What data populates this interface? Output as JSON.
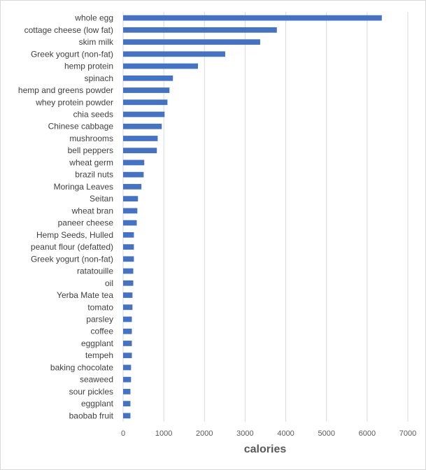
{
  "chart_data": {
    "type": "bar",
    "orientation": "horizontal",
    "title": "",
    "xlabel": "calories",
    "ylabel": "",
    "xlim": [
      0,
      7000
    ],
    "xticks": [
      0,
      1000,
      2000,
      3000,
      4000,
      5000,
      6000,
      7000
    ],
    "grid": true,
    "legend": "none",
    "bar_color": "#4472c4",
    "categories": [
      "whole egg",
      "cottage cheese (low fat)",
      "skim milk",
      "Greek yogurt (non-fat)",
      "hemp protein",
      "spinach",
      "hemp and greens powder",
      "whey protein powder",
      "chia seeds",
      "Chinese cabbage",
      "mushrooms",
      "bell peppers",
      "wheat germ",
      "brazil nuts",
      "Moringa Leaves",
      "Seitan",
      "wheat bran",
      "paneer cheese",
      "Hemp Seeds, Hulled",
      "peanut flour (defatted)",
      "Greek yogurt (non-fat)",
      "ratatouille",
      "oil",
      "Yerba Mate tea",
      "tomato",
      "parsley",
      "coffee",
      "eggplant",
      "tempeh",
      "baking chocolate",
      "seaweed",
      "sour pickles",
      "eggplant",
      "baobab fruit"
    ],
    "values": [
      6360,
      3780,
      3370,
      2510,
      1840,
      1225,
      1140,
      1090,
      1020,
      950,
      850,
      830,
      520,
      505,
      450,
      365,
      350,
      335,
      265,
      265,
      265,
      250,
      250,
      230,
      230,
      215,
      215,
      215,
      215,
      195,
      195,
      180,
      180,
      180
    ]
  }
}
